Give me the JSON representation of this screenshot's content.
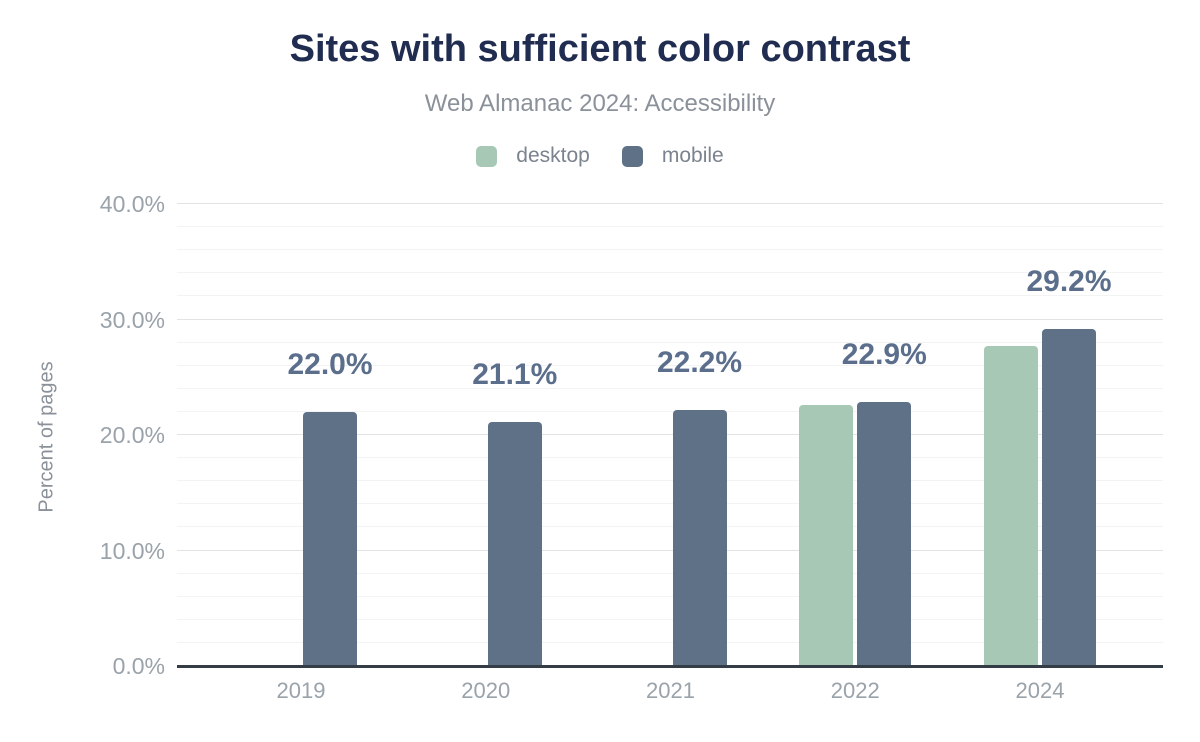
{
  "header": {
    "title": "Sites with sufficient color contrast",
    "subtitle": "Web Almanac 2024: Accessibility"
  },
  "legend": [
    {
      "label": "desktop",
      "color": "#a8c8b6"
    },
    {
      "label": "mobile",
      "color": "#5f7186"
    }
  ],
  "chart_data": {
    "type": "bar",
    "title": "Sites with sufficient color contrast",
    "subtitle": "Web Almanac 2024: Accessibility",
    "categories": [
      "2019",
      "2020",
      "2021",
      "2022",
      "2024"
    ],
    "series": [
      {
        "name": "desktop",
        "color": "#a8c8b6",
        "values": [
          null,
          null,
          null,
          22.6,
          27.7
        ]
      },
      {
        "name": "mobile",
        "color": "#5f7186",
        "values": [
          22.0,
          21.1,
          22.2,
          22.9,
          29.2
        ]
      }
    ],
    "bar_labels": {
      "series": "mobile",
      "texts": [
        "22.0%",
        "21.1%",
        "22.2%",
        "22.9%",
        "29.2%"
      ]
    },
    "xlabel": "",
    "ylabel": "Percent of pages",
    "ylim": [
      0,
      40
    ],
    "yticks": [
      {
        "value": 0,
        "label": "0.0%"
      },
      {
        "value": 10,
        "label": "10.0%"
      },
      {
        "value": 20,
        "label": "20.0%"
      },
      {
        "value": 30,
        "label": "30.0%"
      },
      {
        "value": 40,
        "label": "40.0%"
      }
    ],
    "grid": {
      "minor_step": 2,
      "major_step": 10,
      "visible": true
    },
    "legend_position": "top"
  },
  "colors": {
    "background": "#ffffff",
    "title": "#202c50",
    "subtitle": "#8b919a",
    "tick_labels": "#9aa2aa",
    "data_label": "#5b6e8c",
    "axis_line": "#343c46",
    "gridline_major": "#e2e3e5",
    "gridline_minor": "#f3f3f3",
    "desktop_bar": "#a8c8b6",
    "mobile_bar": "#5f7186"
  }
}
